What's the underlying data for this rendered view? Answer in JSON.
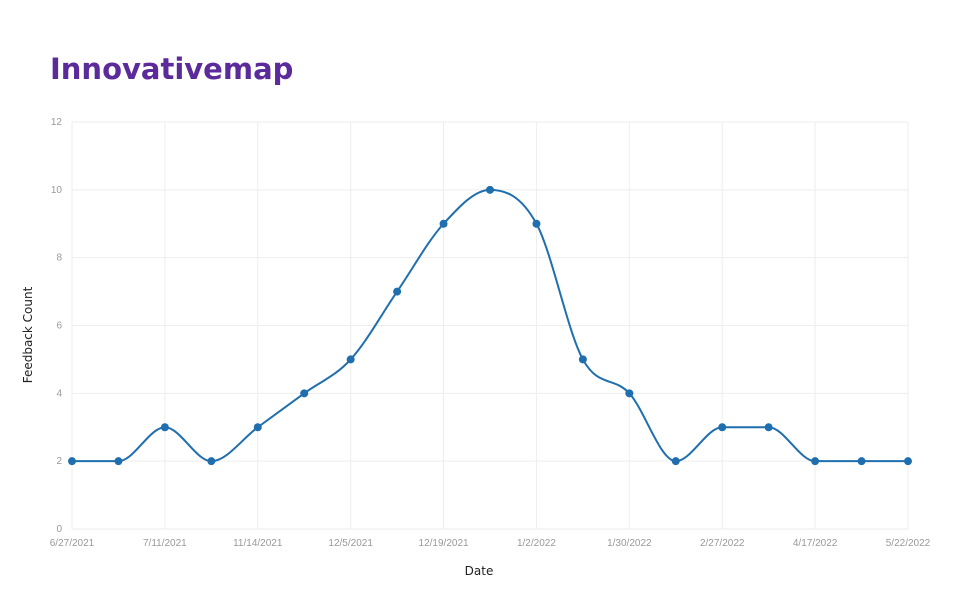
{
  "title": "Innovativemap",
  "chart_data": {
    "type": "line",
    "xlabel": "Date",
    "ylabel": "Feedback Count",
    "ylim": [
      0,
      12
    ],
    "yticks": [
      0,
      2,
      4,
      6,
      8,
      10,
      12
    ],
    "grid": true,
    "smooth": true,
    "color": "#1f6fae",
    "x_tick_labels": [
      "6/27/2021",
      "7/11/2021",
      "11/14/2021",
      "12/5/2021",
      "12/19/2021",
      "1/2/2022",
      "1/30/2022",
      "2/27/2022",
      "4/17/2022",
      "5/22/2022"
    ],
    "x_tick_indices": [
      0,
      2,
      4,
      6,
      8,
      10,
      12,
      14,
      16,
      18
    ],
    "series": [
      {
        "values": [
          2,
          2,
          3,
          2,
          3,
          4,
          5,
          7,
          9,
          10,
          9,
          5,
          4,
          2,
          3,
          3,
          2,
          2,
          2
        ]
      }
    ]
  }
}
